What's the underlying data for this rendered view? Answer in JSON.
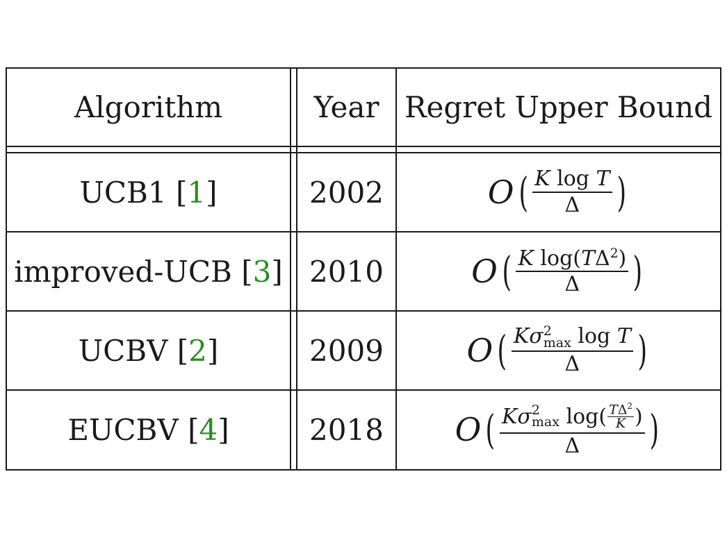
{
  "table": {
    "headers": [
      "Algorithm",
      "Year",
      "Regret Upper Bound"
    ],
    "rows": [
      {
        "algorithm": "UCB1",
        "cite": "1",
        "year": "2002"
      },
      {
        "algorithm": "improved-UCB",
        "cite": "3",
        "year": "2010"
      },
      {
        "algorithm": "UCBV",
        "cite": "2",
        "year": "2009"
      },
      {
        "algorithm": "EUCBV",
        "cite": "4",
        "year": "2018"
      }
    ]
  },
  "math": {
    "O": "O",
    "delta": "Δ",
    "K": "K",
    "T": "T",
    "log": "log",
    "sigma": "σ",
    "two": "2",
    "max": "max",
    "lparen": "(",
    "rparen": ")"
  },
  "colors": {
    "cite": "#2a8a2a",
    "rule": "#1a1a1a"
  }
}
